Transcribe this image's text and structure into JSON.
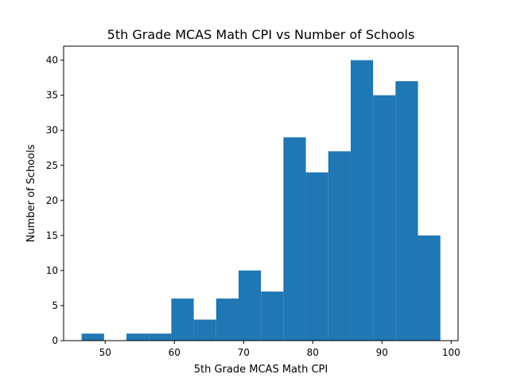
{
  "chart_data": {
    "type": "bar",
    "title": "5th Grade MCAS Math CPI vs Number of Schools",
    "xlabel": "5th Grade MCAS Math CPI",
    "ylabel": "Number of Schools",
    "bin_edges": [
      46.6,
      49.84,
      53.08,
      56.32,
      59.56,
      62.8,
      66.04,
      69.28,
      72.52,
      75.76,
      79.0,
      82.24,
      85.48,
      88.72,
      91.96,
      95.2,
      98.44
    ],
    "values": [
      1,
      0,
      1,
      1,
      6,
      3,
      6,
      10,
      7,
      29,
      24,
      27,
      40,
      35,
      37,
      15
    ],
    "xlim": [
      44.0,
      101.0
    ],
    "ylim": [
      0,
      42
    ],
    "xticks": [
      50,
      60,
      70,
      80,
      90,
      100
    ],
    "yticks": [
      0,
      5,
      10,
      15,
      20,
      25,
      30,
      35,
      40
    ],
    "bar_color": "#1f77b4",
    "grid": false,
    "legend": "none"
  }
}
